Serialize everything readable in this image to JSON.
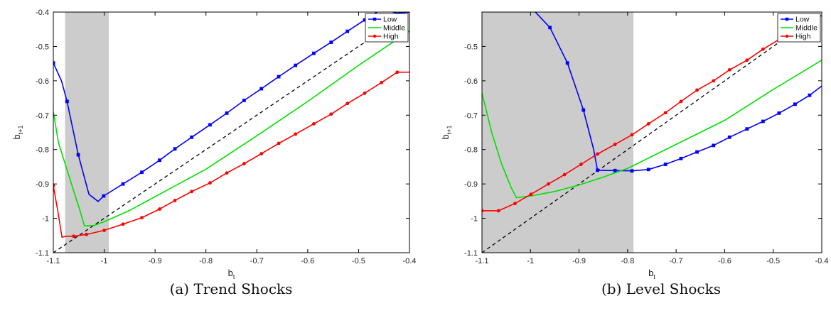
{
  "colors": {
    "Low": "#0000ff",
    "Middle": "#00e000",
    "High": "#ff0000",
    "shade": "#cccccc",
    "diag": "#000000"
  },
  "chart_data": [
    {
      "type": "line",
      "caption": "(a) Trend Shocks",
      "xlabel": "b",
      "xlabel_sub": "t",
      "ylabel": "b",
      "ylabel_sub": "t+1",
      "xlim": [
        -1.1,
        -0.4
      ],
      "ylim": [
        -1.1,
        -0.4
      ],
      "xticks": [
        -1.1,
        -1,
        -0.9,
        -0.8,
        -0.7,
        -0.6,
        -0.5,
        -0.4
      ],
      "xtick_labels": [
        "-1.1",
        "-1",
        "-0.9",
        "-0.8",
        "-0.7",
        "-0.6",
        "-0.5",
        "-0.4"
      ],
      "yticks": [
        -1.1,
        -1,
        -0.9,
        -0.8,
        -0.7,
        -0.6,
        -0.5,
        -0.4
      ],
      "ytick_labels": [
        "-1.1",
        "-1",
        "-0.9",
        "-0.8",
        "-0.7",
        "-0.6",
        "-0.5",
        "-0.4"
      ],
      "shaded_region": [
        -1.077,
        -0.991
      ],
      "legend": "top-right",
      "grid": false,
      "series": [
        {
          "name": "Low",
          "marker": "square",
          "x": [
            -1.1,
            -1.084,
            -1.073,
            -1.051,
            -1.03,
            -1.012,
            -1.001,
            -0.963,
            -0.926,
            -0.891,
            -0.861,
            -0.828,
            -0.792,
            -0.759,
            -0.725,
            -0.691,
            -0.657,
            -0.624,
            -0.588,
            -0.554,
            -0.522,
            -0.488,
            -0.455,
            -0.424,
            -0.4
          ],
          "y": [
            -0.548,
            -0.6,
            -0.66,
            -0.815,
            -0.93,
            -0.951,
            -0.935,
            -0.9,
            -0.866,
            -0.831,
            -0.798,
            -0.764,
            -0.728,
            -0.694,
            -0.657,
            -0.623,
            -0.588,
            -0.555,
            -0.52,
            -0.488,
            -0.456,
            -0.423,
            -0.392,
            -0.403,
            -0.4
          ],
          "markers_x": [
            -1.1,
            -1.073,
            -1.051,
            -1.001,
            -0.963,
            -0.926,
            -0.891,
            -0.861,
            -0.828,
            -0.792,
            -0.759,
            -0.725,
            -0.691,
            -0.657,
            -0.624,
            -0.588,
            -0.554,
            -0.522,
            -0.488,
            -0.455
          ],
          "markers_y": [
            -0.548,
            -0.66,
            -0.815,
            -0.935,
            -0.9,
            -0.866,
            -0.831,
            -0.798,
            -0.764,
            -0.728,
            -0.694,
            -0.657,
            -0.623,
            -0.588,
            -0.555,
            -0.52,
            -0.488,
            -0.456,
            -0.423,
            -0.392
          ]
        },
        {
          "name": "Middle",
          "marker": "none",
          "x": [
            -1.1,
            -1.09,
            -1.075,
            -1.06,
            -1.047,
            -1.039,
            -1.02,
            -1.0,
            -0.95,
            -0.9,
            -0.8,
            -0.7,
            -0.6,
            -0.5,
            -0.45,
            -0.4
          ],
          "y": [
            -0.69,
            -0.78,
            -0.85,
            -0.92,
            -0.98,
            -1.022,
            -1.021,
            -1.01,
            -0.977,
            -0.937,
            -0.857,
            -0.76,
            -0.66,
            -0.555,
            -0.505,
            -0.455
          ]
        },
        {
          "name": "High",
          "marker": "circle",
          "x": [
            -1.1,
            -1.091,
            -1.083,
            -1.075,
            -1.06,
            -1.035,
            -1.0,
            -0.963,
            -0.926,
            -0.891,
            -0.861,
            -0.828,
            -0.792,
            -0.759,
            -0.725,
            -0.691,
            -0.657,
            -0.624,
            -0.588,
            -0.554,
            -0.522,
            -0.488,
            -0.455,
            -0.424,
            -0.4
          ],
          "y": [
            -0.905,
            -0.98,
            -1.055,
            -1.052,
            -1.052,
            -1.047,
            -1.035,
            -1.017,
            -0.998,
            -0.973,
            -0.948,
            -0.922,
            -0.897,
            -0.868,
            -0.841,
            -0.812,
            -0.782,
            -0.755,
            -0.725,
            -0.697,
            -0.666,
            -0.636,
            -0.605,
            -0.575,
            -0.575
          ],
          "markers_x": [
            -1.1,
            -1.06,
            -1.035,
            -1.0,
            -0.963,
            -0.926,
            -0.891,
            -0.861,
            -0.828,
            -0.792,
            -0.759,
            -0.725,
            -0.691,
            -0.657,
            -0.624,
            -0.588,
            -0.554,
            -0.522,
            -0.488,
            -0.455,
            -0.424
          ],
          "markers_y": [
            -0.905,
            -1.052,
            -1.047,
            -1.035,
            -1.017,
            -0.998,
            -0.973,
            -0.948,
            -0.922,
            -0.897,
            -0.868,
            -0.841,
            -0.812,
            -0.782,
            -0.755,
            -0.725,
            -0.697,
            -0.666,
            -0.636,
            -0.605,
            -0.575
          ]
        }
      ]
    },
    {
      "type": "line",
      "caption": "(b) Level Shocks",
      "xlabel": "b",
      "xlabel_sub": "t",
      "ylabel": "b",
      "ylabel_sub": "t+1",
      "xlim": [
        -1.1,
        -0.4
      ],
      "ylim": [
        -1.1,
        -0.4
      ],
      "xticks": [
        -1.1,
        -1,
        -0.9,
        -0.8,
        -0.7,
        -0.6,
        -0.5,
        -0.4
      ],
      "xtick_labels": [
        "-1.1",
        "-1",
        "-0.9",
        "-0.8",
        "-0.7",
        "-0.6",
        "-0.5",
        "-0.4"
      ],
      "yticks": [
        -1.1,
        -1,
        -0.9,
        -0.8,
        -0.7,
        -0.6,
        -0.5
      ],
      "ytick_labels": [
        "-1.1",
        "-1",
        "-0.9",
        "-0.8",
        "-0.7",
        "-0.6",
        "-0.5"
      ],
      "shaded_region": [
        -1.1,
        -0.788
      ],
      "legend": "top-right",
      "grid": false,
      "series": [
        {
          "name": "Low",
          "marker": "square",
          "x": [
            -0.99,
            -0.96,
            -0.924,
            -0.891,
            -0.87,
            -0.862,
            -0.826,
            -0.791,
            -0.757,
            -0.722,
            -0.69,
            -0.657,
            -0.623,
            -0.59,
            -0.554,
            -0.521,
            -0.488,
            -0.455,
            -0.425,
            -0.4
          ],
          "y": [
            -0.4,
            -0.445,
            -0.548,
            -0.685,
            -0.8,
            -0.86,
            -0.861,
            -0.862,
            -0.858,
            -0.843,
            -0.826,
            -0.807,
            -0.788,
            -0.764,
            -0.74,
            -0.718,
            -0.694,
            -0.668,
            -0.642,
            -0.615
          ],
          "markers_x": [
            -0.96,
            -0.924,
            -0.891,
            -0.862,
            -0.826,
            -0.791,
            -0.757,
            -0.722,
            -0.69,
            -0.657,
            -0.623,
            -0.59,
            -0.554,
            -0.521,
            -0.488,
            -0.455,
            -0.425
          ],
          "markers_y": [
            -0.445,
            -0.548,
            -0.685,
            -0.86,
            -0.861,
            -0.862,
            -0.858,
            -0.843,
            -0.826,
            -0.807,
            -0.788,
            -0.764,
            -0.74,
            -0.718,
            -0.694,
            -0.668,
            -0.642
          ]
        },
        {
          "name": "Middle",
          "marker": "none",
          "x": [
            -1.1,
            -1.08,
            -1.06,
            -1.04,
            -1.029,
            -1.0,
            -0.95,
            -0.9,
            -0.85,
            -0.8,
            -0.7,
            -0.6,
            -0.5,
            -0.4
          ],
          "y": [
            -0.635,
            -0.75,
            -0.84,
            -0.91,
            -0.94,
            -0.935,
            -0.922,
            -0.903,
            -0.88,
            -0.855,
            -0.785,
            -0.715,
            -0.625,
            -0.54
          ]
        },
        {
          "name": "High",
          "marker": "circle",
          "x": [
            -1.1,
            -1.066,
            -1.032,
            -0.999,
            -0.963,
            -0.93,
            -0.896,
            -0.862,
            -0.826,
            -0.791,
            -0.757,
            -0.722,
            -0.69,
            -0.657,
            -0.623,
            -0.59,
            -0.554,
            -0.521,
            -0.488,
            -0.455,
            -0.4
          ],
          "y": [
            -0.978,
            -0.978,
            -0.957,
            -0.93,
            -0.9,
            -0.873,
            -0.843,
            -0.813,
            -0.785,
            -0.757,
            -0.725,
            -0.693,
            -0.66,
            -0.627,
            -0.6,
            -0.568,
            -0.54,
            -0.508,
            -0.48,
            -0.45,
            -0.41
          ],
          "markers_x": [
            -1.1,
            -1.066,
            -1.032,
            -0.999,
            -0.963,
            -0.93,
            -0.896,
            -0.862,
            -0.826,
            -0.791,
            -0.757,
            -0.722,
            -0.69,
            -0.657,
            -0.623,
            -0.59,
            -0.554,
            -0.521,
            -0.488,
            -0.455
          ],
          "markers_y": [
            -0.978,
            -0.978,
            -0.957,
            -0.93,
            -0.9,
            -0.873,
            -0.843,
            -0.813,
            -0.785,
            -0.757,
            -0.725,
            -0.693,
            -0.66,
            -0.627,
            -0.6,
            -0.568,
            -0.54,
            -0.508,
            -0.48,
            -0.45
          ]
        }
      ]
    }
  ]
}
